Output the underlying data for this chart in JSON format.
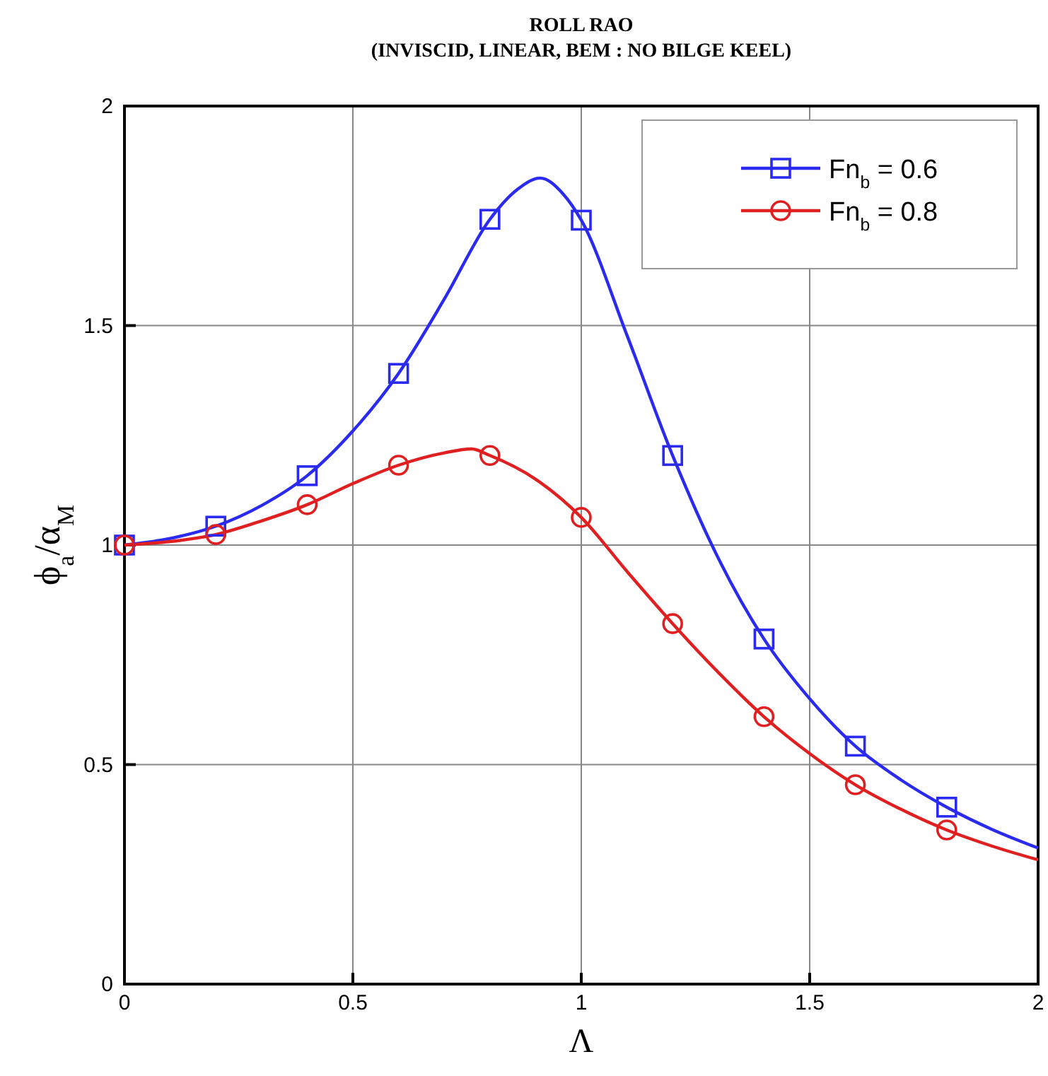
{
  "chart_data": {
    "type": "line",
    "title": "ROLL RAO",
    "subtitle": "(INVISCID, LINEAR, BEM  : NO BILGE KEEL)",
    "xlabel": "Λ",
    "ylabel": "ϕ$_{a}$/α$_{M}$",
    "xlim": [
      0,
      2
    ],
    "ylim": [
      0,
      2
    ],
    "xticks": [
      0,
      0.5,
      1,
      1.5,
      2
    ],
    "yticks": [
      0,
      0.5,
      1,
      1.5,
      2
    ],
    "grid": true,
    "legend": "top right",
    "line_style": "solid",
    "marker": "none",
    "series": [
      {
        "color": "#2a2af0",
        "x": [
          0,
          0.1,
          0.2,
          0.3,
          0.4,
          0.5,
          0.6,
          0.7,
          0.8,
          0.86,
          0.91,
          0.96,
          1.0,
          1.1,
          1.2,
          1.3,
          1.4,
          1.5,
          1.6,
          1.7,
          1.8,
          1.9,
          2.0
        ],
        "values": [
          1,
          1.015,
          1.043,
          1.09,
          1.158,
          1.26,
          1.391,
          1.56,
          1.742,
          1.81,
          1.836,
          1.8,
          1.74,
          1.478,
          1.204,
          0.97,
          0.786,
          0.65,
          0.542,
          0.465,
          0.403,
          0.352,
          0.31
        ]
      },
      {
        "color": "#e02020",
        "x": [
          0,
          0.1,
          0.2,
          0.3,
          0.4,
          0.5,
          0.6,
          0.7,
          0.76,
          0.8,
          0.9,
          1.0,
          1.1,
          1.2,
          1.3,
          1.4,
          1.5,
          1.6,
          1.7,
          1.8,
          1.9,
          2.0
        ],
        "values": [
          1,
          1.008,
          1.024,
          1.055,
          1.092,
          1.14,
          1.182,
          1.21,
          1.219,
          1.204,
          1.15,
          1.063,
          0.94,
          0.821,
          0.71,
          0.609,
          0.525,
          0.454,
          0.398,
          0.351,
          0.314,
          0.283
        ]
      },
      {
        "name": "Fn$_{b}$ = 0.6",
        "type": "scatter",
        "marker": "square",
        "color": "#2a2af0",
        "x": [
          0,
          0.2,
          0.4,
          0.6,
          0.8,
          1.0,
          1.2,
          1.4,
          1.6,
          1.8
        ],
        "values": [
          1,
          1.043,
          1.158,
          1.391,
          1.742,
          1.74,
          1.204,
          0.786,
          0.542,
          0.403
        ]
      },
      {
        "name": "Fn$_{b}$ = 0.8",
        "type": "scatter",
        "marker": "circle",
        "color": "#e02020",
        "x": [
          0,
          0.2,
          0.4,
          0.6,
          0.8,
          1.0,
          1.2,
          1.4,
          1.6,
          1.8
        ],
        "values": [
          1,
          1.024,
          1.092,
          1.182,
          1.204,
          1.063,
          0.821,
          0.609,
          0.454,
          0.351
        ]
      }
    ]
  }
}
